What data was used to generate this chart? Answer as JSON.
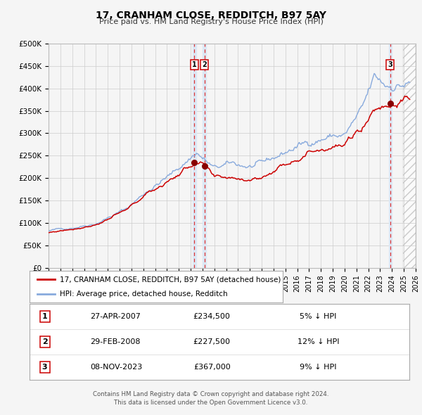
{
  "title": "17, CRANHAM CLOSE, REDDITCH, B97 5AY",
  "subtitle": "Price paid vs. HM Land Registry's House Price Index (HPI)",
  "legend_line1": "17, CRANHAM CLOSE, REDDITCH, B97 5AY (detached house)",
  "legend_line2": "HPI: Average price, detached house, Redditch",
  "sale_color": "#cc0000",
  "hpi_color": "#88aadd",
  "sales": [
    {
      "date_num": 2007.32,
      "price": 234500,
      "label": "1"
    },
    {
      "date_num": 2008.16,
      "price": 227500,
      "label": "2"
    },
    {
      "date_num": 2023.85,
      "price": 367000,
      "label": "3"
    }
  ],
  "table_rows": [
    {
      "num": "1",
      "date": "27-APR-2007",
      "price": "£234,500",
      "pct": "5% ↓ HPI"
    },
    {
      "num": "2",
      "date": "29-FEB-2008",
      "price": "£227,500",
      "pct": "12% ↓ HPI"
    },
    {
      "num": "3",
      "date": "08-NOV-2023",
      "price": "£367,000",
      "pct": "9% ↓ HPI"
    }
  ],
  "footer": "Contains HM Land Registry data © Crown copyright and database right 2024.\nThis data is licensed under the Open Government Licence v3.0.",
  "xmin": 1995.0,
  "xmax": 2026.0,
  "ymin": 0,
  "ymax": 500000,
  "yticks": [
    0,
    50000,
    100000,
    150000,
    200000,
    250000,
    300000,
    350000,
    400000,
    450000,
    500000
  ],
  "background_color": "#f5f5f5",
  "grid_color": "#cccccc",
  "highlight_color": "#dce8f5",
  "hatch_start": 2024.92
}
